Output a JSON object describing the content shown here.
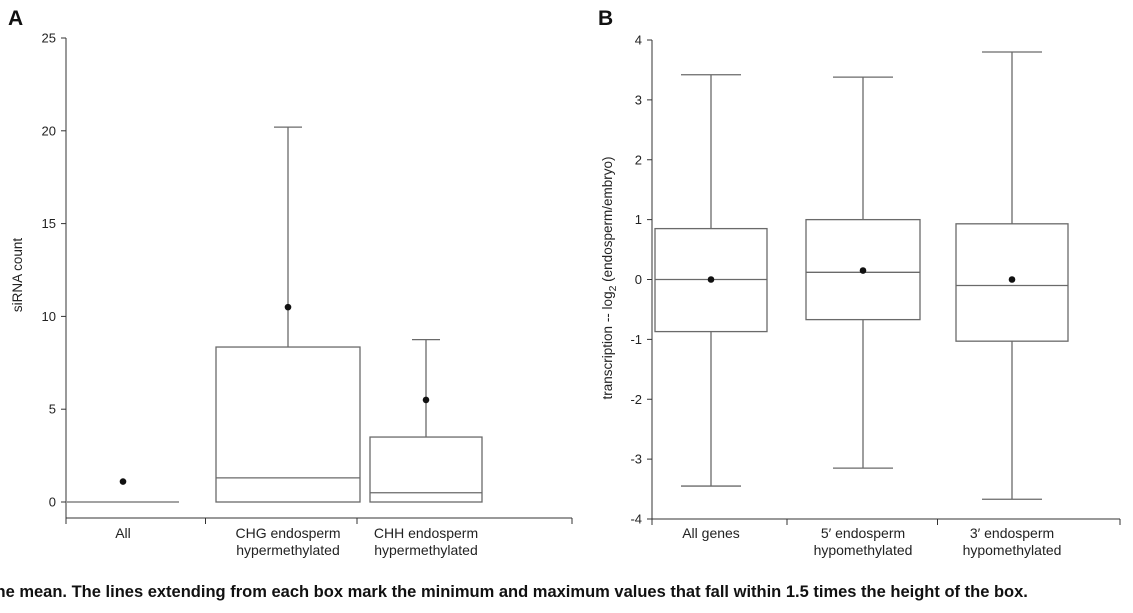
{
  "chart_data": [
    {
      "type": "box",
      "panel": "A",
      "ylabel": "siRNA count",
      "ylim": [
        0,
        25
      ],
      "yticks": [
        0,
        5,
        10,
        15,
        20,
        25
      ],
      "categories": [
        {
          "line1": "All",
          "line2": ""
        },
        {
          "line1": "CHG endosperm",
          "line2": "hypermethylated"
        },
        {
          "line1": "CHH endosperm",
          "line2": "hypermethylated"
        }
      ],
      "boxes": [
        {
          "min": 0,
          "q1": 0,
          "median": 0,
          "q3": 0,
          "max": 0,
          "mean": 1.1
        },
        {
          "min": 0,
          "q1": 0,
          "median": 1.3,
          "q3": 8.35,
          "max": 20.2,
          "mean": 10.5
        },
        {
          "min": 0,
          "q1": 0,
          "median": 0.5,
          "q3": 3.5,
          "max": 8.75,
          "mean": 5.5
        }
      ]
    },
    {
      "type": "box",
      "panel": "B",
      "ylabel_main": "transcription -- log",
      "ylabel_sub": "2",
      "ylabel_rest": " (endosperm/embryo)",
      "ylim": [
        -4,
        4
      ],
      "yticks": [
        "-4",
        "-3",
        "-2",
        "-1",
        "0",
        "1",
        "2",
        "3",
        "4"
      ],
      "categories": [
        {
          "line1": "All genes",
          "line2": ""
        },
        {
          "line1": "5′ endosperm",
          "line2": "hypomethylated"
        },
        {
          "line1": "3′ endosperm",
          "line2": "hypomethylated"
        }
      ],
      "boxes": [
        {
          "min": -3.45,
          "q1": -0.87,
          "median": 0.0,
          "q3": 0.85,
          "max": 3.42,
          "mean": 0.0
        },
        {
          "min": -3.15,
          "q1": -0.67,
          "median": 0.12,
          "q3": 1.0,
          "max": 3.38,
          "mean": 0.15
        },
        {
          "min": -3.67,
          "q1": -1.03,
          "median": -0.1,
          "q3": 0.93,
          "max": 3.8,
          "mean": 0.0
        }
      ]
    }
  ],
  "caption": "the mean. The lines extending from each box mark the minimum and maximum values that fall within 1.5 times the height of the box."
}
